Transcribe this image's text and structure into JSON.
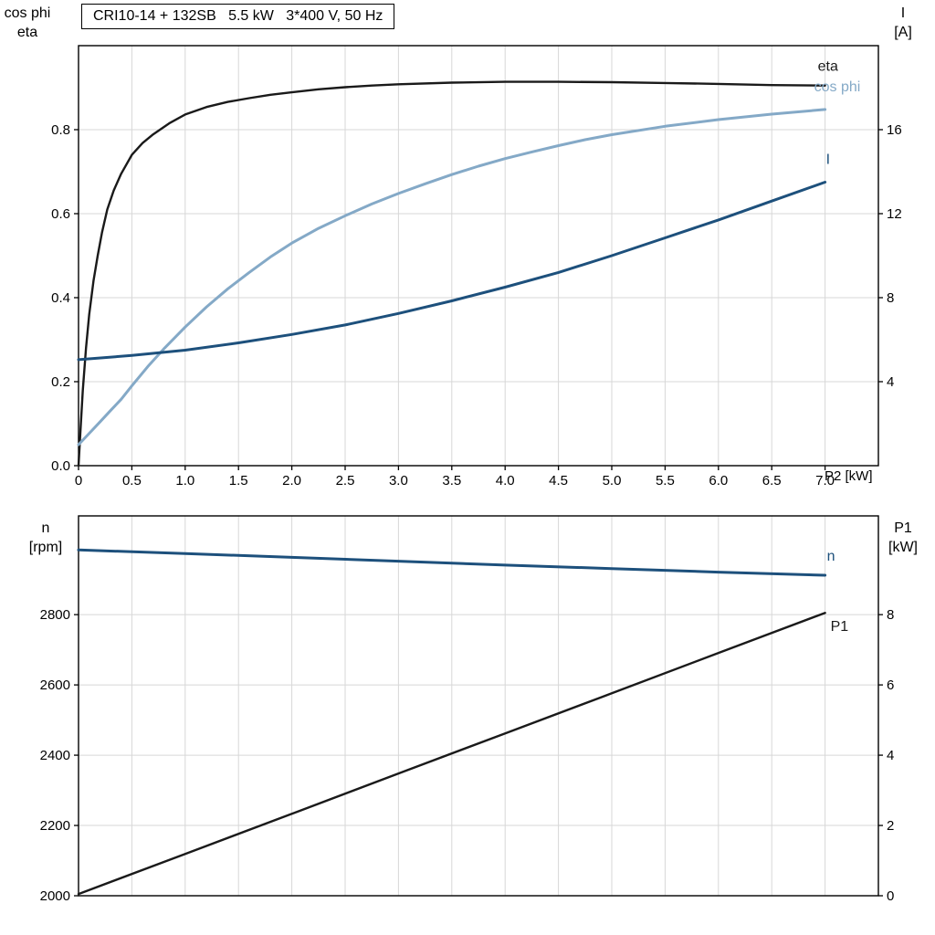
{
  "title": "CRI10-14 + 132SB   5.5 kW   3*400 V, 50 Hz",
  "colors": {
    "black_curve": "#1a1a1a",
    "cos_phi_curve": "#84a9c7",
    "dark_blue_curve": "#1d507c",
    "grid": "#d7d7d7",
    "axis": "#000000",
    "background": "#ffffff"
  },
  "chart_data": [
    {
      "type": "line",
      "title": "CRI10-14 + 132SB   5.5 kW   3*400 V, 50 Hz",
      "xlabel": "P2 [kW]",
      "x_range": [
        0,
        7.5
      ],
      "x_ticks": [
        {
          "v": 0,
          "label": "0"
        },
        {
          "v": 0.5,
          "label": "0.5"
        },
        {
          "v": 1,
          "label": "1.0"
        },
        {
          "v": 1.5,
          "label": "1.5"
        },
        {
          "v": 2,
          "label": "2.0"
        },
        {
          "v": 2.5,
          "label": "2.5"
        },
        {
          "v": 3,
          "label": "3.0"
        },
        {
          "v": 3.5,
          "label": "3.5"
        },
        {
          "v": 4,
          "label": "4.0"
        },
        {
          "v": 4.5,
          "label": "4.5"
        },
        {
          "v": 5,
          "label": "5.0"
        },
        {
          "v": 5.5,
          "label": "5.5"
        },
        {
          "v": 6,
          "label": "6.0"
        },
        {
          "v": 6.5,
          "label": "6.5"
        },
        {
          "v": 7,
          "label": "7.0"
        }
      ],
      "left_axis": {
        "label_lines": [
          "cos phi",
          "eta"
        ],
        "range": [
          0,
          1.0
        ],
        "ticks": [
          {
            "v": 0,
            "label": "0.0"
          },
          {
            "v": 0.2,
            "label": "0.2"
          },
          {
            "v": 0.4,
            "label": "0.4"
          },
          {
            "v": 0.6,
            "label": "0.6"
          },
          {
            "v": 0.8,
            "label": "0.8"
          }
        ]
      },
      "right_axis": {
        "label_lines": [
          "I",
          "[A]"
        ],
        "range": [
          0,
          20
        ],
        "ticks": [
          {
            "v": 4,
            "label": "4"
          },
          {
            "v": 8,
            "label": "8"
          },
          {
            "v": 12,
            "label": "12"
          },
          {
            "v": 16,
            "label": "16"
          }
        ]
      },
      "series": [
        {
          "name": "eta",
          "axis": "left",
          "color": "#1a1a1a",
          "width": 2.4,
          "label": "eta",
          "label_offset": [
            -8,
            -16
          ],
          "x": [
            0,
            0.02,
            0.04,
            0.07,
            0.1,
            0.14,
            0.18,
            0.22,
            0.27,
            0.33,
            0.4,
            0.5,
            0.6,
            0.7,
            0.85,
            1.0,
            1.2,
            1.4,
            1.6,
            1.8,
            2.0,
            2.25,
            2.5,
            2.75,
            3.0,
            3.5,
            4.0,
            4.5,
            5.0,
            5.5,
            6.0,
            6.5,
            7.0
          ],
          "y": [
            0,
            0.09,
            0.18,
            0.28,
            0.36,
            0.44,
            0.5,
            0.555,
            0.61,
            0.655,
            0.695,
            0.74,
            0.768,
            0.789,
            0.815,
            0.836,
            0.854,
            0.866,
            0.875,
            0.883,
            0.889,
            0.896,
            0.901,
            0.905,
            0.908,
            0.912,
            0.914,
            0.914,
            0.913,
            0.911,
            0.909,
            0.906,
            0.905
          ]
        },
        {
          "name": "cos phi",
          "axis": "left",
          "color": "#84a9c7",
          "width": 3,
          "label": "cos phi",
          "label_offset": [
            -12,
            -20
          ],
          "x": [
            0,
            0.1,
            0.2,
            0.3,
            0.4,
            0.5,
            0.65,
            0.8,
            1.0,
            1.2,
            1.4,
            1.6,
            1.8,
            2.0,
            2.25,
            2.5,
            2.75,
            3.0,
            3.25,
            3.5,
            3.75,
            4.0,
            4.25,
            4.5,
            4.75,
            5.0,
            5.5,
            6.0,
            6.5,
            7.0
          ],
          "y": [
            0.05,
            0.077,
            0.104,
            0.131,
            0.158,
            0.19,
            0.236,
            0.278,
            0.33,
            0.378,
            0.421,
            0.46,
            0.497,
            0.53,
            0.565,
            0.595,
            0.623,
            0.648,
            0.671,
            0.693,
            0.713,
            0.731,
            0.747,
            0.762,
            0.776,
            0.788,
            0.808,
            0.824,
            0.837,
            0.848
          ]
        },
        {
          "name": "I",
          "axis": "right",
          "color": "#1d507c",
          "width": 3,
          "label": "I",
          "label_offset": [
            1,
            -20
          ],
          "x": [
            0,
            0.5,
            1.0,
            1.5,
            2.0,
            2.5,
            3.0,
            3.5,
            4.0,
            4.5,
            5.0,
            5.5,
            6.0,
            6.5,
            7.0
          ],
          "y": [
            5.05,
            5.25,
            5.5,
            5.85,
            6.25,
            6.7,
            7.25,
            7.85,
            8.5,
            9.2,
            10.0,
            10.85,
            11.7,
            12.6,
            13.5
          ]
        }
      ]
    },
    {
      "type": "line",
      "xlabel": "",
      "x_range": [
        0,
        7.5
      ],
      "x_ticks": [
        {
          "v": 0.5,
          "label": ""
        },
        {
          "v": 1,
          "label": ""
        },
        {
          "v": 1.5,
          "label": ""
        },
        {
          "v": 2,
          "label": ""
        },
        {
          "v": 2.5,
          "label": ""
        },
        {
          "v": 3,
          "label": ""
        },
        {
          "v": 3.5,
          "label": ""
        },
        {
          "v": 4,
          "label": ""
        },
        {
          "v": 4.5,
          "label": ""
        },
        {
          "v": 5,
          "label": ""
        },
        {
          "v": 5.5,
          "label": ""
        },
        {
          "v": 6,
          "label": ""
        },
        {
          "v": 6.5,
          "label": ""
        },
        {
          "v": 7,
          "label": ""
        }
      ],
      "left_axis": {
        "label_lines": [
          "n",
          "[rpm]"
        ],
        "range": [
          2000,
          3081
        ],
        "ticks": [
          {
            "v": 2000,
            "label": "2000"
          },
          {
            "v": 2200,
            "label": "2200"
          },
          {
            "v": 2400,
            "label": "2400"
          },
          {
            "v": 2600,
            "label": "2600"
          },
          {
            "v": 2800,
            "label": "2800"
          }
        ]
      },
      "right_axis": {
        "label_lines": [
          "P1",
          "[kW]"
        ],
        "range": [
          0,
          10.81
        ],
        "ticks": [
          {
            "v": 0,
            "label": "0"
          },
          {
            "v": 2,
            "label": "2"
          },
          {
            "v": 4,
            "label": "4"
          },
          {
            "v": 6,
            "label": "6"
          },
          {
            "v": 8,
            "label": "8"
          }
        ]
      },
      "series": [
        {
          "name": "n",
          "axis": "left",
          "color": "#1d507c",
          "width": 3,
          "label": "n",
          "label_offset": [
            2,
            -16
          ],
          "x": [
            0,
            1,
            2,
            3,
            4,
            5,
            6,
            7
          ],
          "y": [
            2984,
            2974,
            2963,
            2952,
            2941,
            2931,
            2921,
            2912
          ]
        },
        {
          "name": "P1",
          "axis": "right",
          "color": "#1a1a1a",
          "width": 2.4,
          "label": "P1",
          "label_offset": [
            6,
            20
          ],
          "x": [
            0,
            1,
            2,
            3,
            4,
            5,
            6,
            7
          ],
          "y": [
            0.05,
            1.19,
            2.33,
            3.48,
            4.62,
            5.76,
            6.91,
            8.05
          ]
        }
      ]
    }
  ]
}
